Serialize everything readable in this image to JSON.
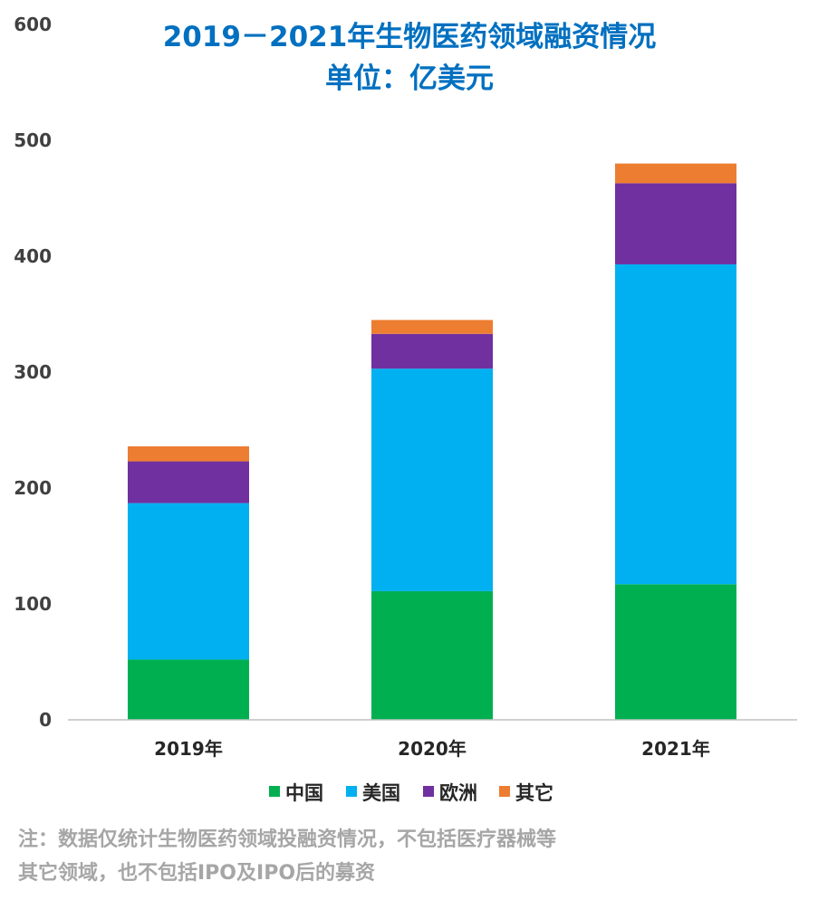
{
  "chart_data": {
    "type": "bar",
    "stacked": true,
    "title": [
      "2019－2021年生物医药领域融资情况",
      "单位：亿美元"
    ],
    "categories": [
      "2019年",
      "2020年",
      "2021年"
    ],
    "series": [
      {
        "name": "中国",
        "color": "#00b050",
        "values": [
          52,
          111,
          117
        ]
      },
      {
        "name": "美国",
        "color": "#00b0f0",
        "values": [
          135,
          192,
          276
        ]
      },
      {
        "name": "欧洲",
        "color": "#7030a0",
        "values": [
          36,
          30,
          70
        ]
      },
      {
        "name": "其它",
        "color": "#ed7d31",
        "values": [
          13,
          12,
          17
        ]
      }
    ],
    "ylim": [
      0,
      600
    ],
    "yticks": [
      0,
      100,
      200,
      300,
      400,
      500,
      600
    ],
    "xlabel": "",
    "ylabel": "",
    "grid": false,
    "legend_position": "bottom"
  },
  "note": [
    "注：数据仅统计生物医药领域投融资情况，不包括医疗器械等",
    "其它领域，也不包括IPO及IPO后的募资"
  ]
}
